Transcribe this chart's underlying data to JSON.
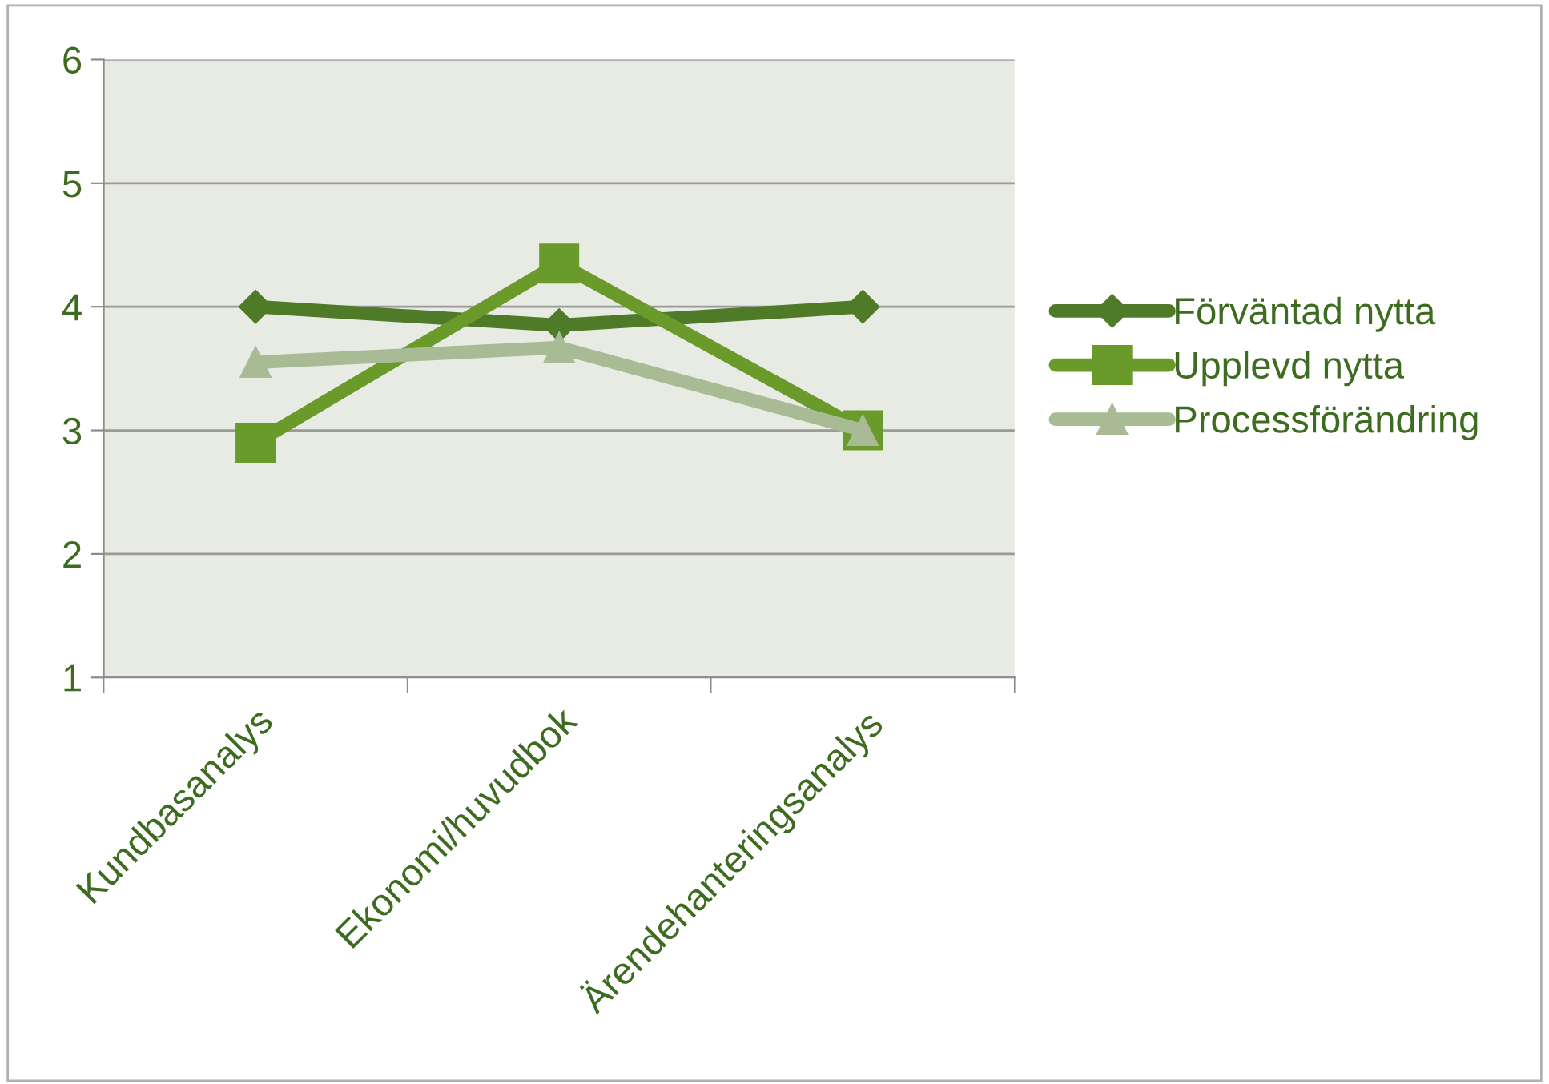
{
  "chart_data": {
    "type": "line",
    "categories": [
      "Kundbasanalys",
      "Ekonomi/huvudbok",
      "Ärendehanteringsanalys"
    ],
    "series": [
      {
        "name": "Förväntad nytta",
        "color": "#4f7a28",
        "marker": "diamond",
        "values": [
          4.0,
          3.85,
          4.0
        ]
      },
      {
        "name": "Upplevd nytta",
        "color": "#6a9a2a",
        "marker": "square",
        "values": [
          2.9,
          4.35,
          3.0
        ]
      },
      {
        "name": "Processförändring",
        "color": "#a9bb94",
        "marker": "triangle",
        "values": [
          3.55,
          3.67,
          3.0
        ]
      }
    ],
    "ylim": [
      1,
      6
    ],
    "yticks": [
      1,
      2,
      3,
      4,
      5,
      6
    ],
    "grid": "y",
    "legend": "right",
    "line_style": "solid"
  }
}
